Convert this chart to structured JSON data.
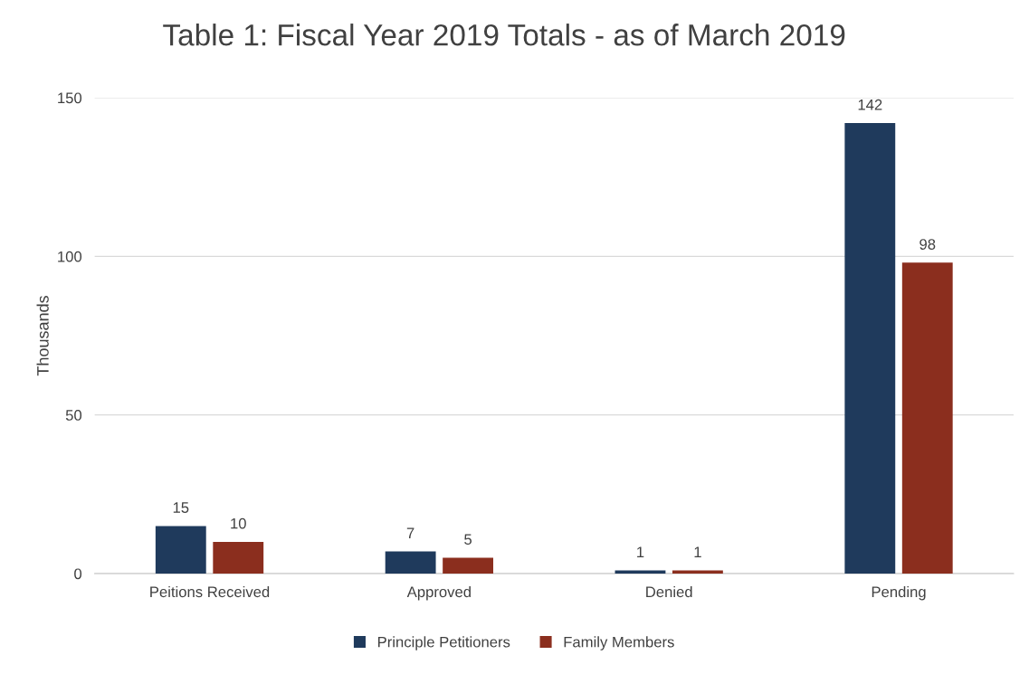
{
  "chart_data": {
    "type": "bar",
    "title": "Table 1: Fiscal Year 2019 Totals - as of March 2019",
    "ylabel": "Thousands",
    "categories": [
      "Peitions Received",
      "Approved",
      "Denied",
      "Pending"
    ],
    "series": [
      {
        "name": "Principle Petitioners",
        "color": "#1f3a5c",
        "values": [
          15,
          7,
          1,
          142
        ]
      },
      {
        "name": "Family Members",
        "color": "#8b2e1e",
        "values": [
          10,
          5,
          1,
          98
        ]
      }
    ],
    "ylim": [
      0,
      150
    ],
    "yticks": [
      0,
      50,
      100,
      150
    ],
    "grid": "y",
    "legend": "bottom",
    "data_labels": true
  }
}
